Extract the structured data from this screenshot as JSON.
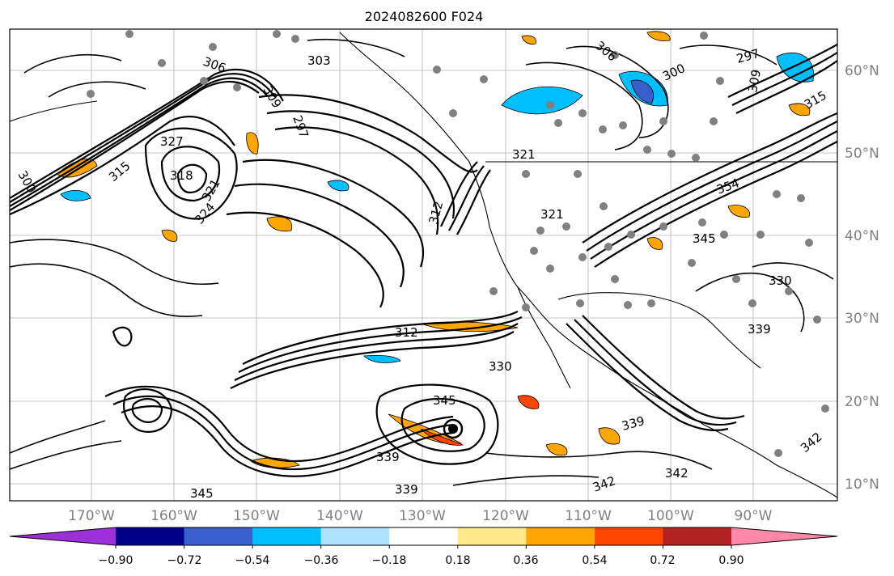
{
  "title": "2024082600 F024",
  "map": {
    "lon_labels": [
      "170°W",
      "160°W",
      "150°W",
      "140°W",
      "130°W",
      "120°W",
      "110°W",
      "100°W",
      "90°W"
    ],
    "lat_labels": [
      "60°N",
      "50°N",
      "40°N",
      "30°N",
      "20°N",
      "10°N"
    ],
    "contour_labels": [
      {
        "text": "300"
      },
      {
        "text": "306"
      },
      {
        "text": "303"
      },
      {
        "text": "309"
      },
      {
        "text": "297"
      },
      {
        "text": "327"
      },
      {
        "text": "318"
      },
      {
        "text": "315"
      },
      {
        "text": "321"
      },
      {
        "text": "324"
      },
      {
        "text": "312"
      },
      {
        "text": "306"
      },
      {
        "text": "300"
      },
      {
        "text": "297"
      },
      {
        "text": "315"
      },
      {
        "text": "309"
      },
      {
        "text": "321"
      },
      {
        "text": "321"
      },
      {
        "text": "354"
      },
      {
        "text": "345"
      },
      {
        "text": "330"
      },
      {
        "text": "339"
      },
      {
        "text": "312"
      },
      {
        "text": "330"
      },
      {
        "text": "345"
      },
      {
        "text": "339"
      },
      {
        "text": "342"
      },
      {
        "text": "342"
      },
      {
        "text": "345"
      },
      {
        "text": "339"
      },
      {
        "text": "342"
      },
      {
        "text": "339"
      }
    ]
  },
  "colorbar": {
    "colors": [
      "#9b30d9",
      "#00008b",
      "#3a5fcd",
      "#00bfff",
      "#b0e2ff",
      "#ffffff",
      "#ffe88a",
      "#ffa500",
      "#ff4500",
      "#b22222",
      "#ff88aa"
    ],
    "tick_labels": [
      "−0.90",
      "−0.72",
      "−0.54",
      "−0.36",
      "−0.18",
      "0.18",
      "0.36",
      "0.54",
      "0.72",
      "0.90"
    ]
  }
}
